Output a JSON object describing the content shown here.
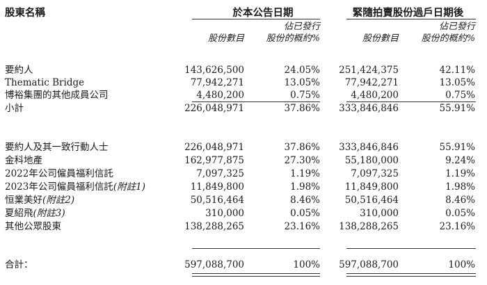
{
  "header": {
    "shareholder_label": "股東名稱",
    "group1_title": "於本公告日期",
    "group2_title": "緊隨拍賣股份過戶日期後",
    "shares_label": "股份數目",
    "pct_label_line1": "佔已發行",
    "pct_label_line2": "股份的概約%"
  },
  "rows_a": [
    {
      "name": "要約人",
      "note": "",
      "s1": "143,626,500",
      "p1": "24.05%",
      "s2": "251,424,375",
      "p2": "42.11%"
    },
    {
      "name": "Thematic Bridge",
      "note": "",
      "s1": "77,942,271",
      "p1": "13.05%",
      "s2": "77,942,271",
      "p2": "13.05%"
    },
    {
      "name": "博裕集團的其他成員公司",
      "note": "",
      "s1": "4,480,200",
      "p1": "0.75%",
      "s2": "4,480,200",
      "p2": "0.75%"
    },
    {
      "name": "小計",
      "note": "",
      "s1": "226,048,971",
      "p1": "37.86%",
      "s2": "333,846,846",
      "p2": "55.91%"
    }
  ],
  "rows_b": [
    {
      "name": "要約人及其一致行動人士",
      "note": "",
      "s1": "226,048,971",
      "p1": "37.86%",
      "s2": "333,846,846",
      "p2": "55.91%"
    },
    {
      "name": "金科地產",
      "note": "",
      "s1": "162,977,875",
      "p1": "27.30%",
      "s2": "55,180,000",
      "p2": "9.24%"
    },
    {
      "name": "2022年公司僱員福利信託",
      "note": "",
      "s1": "7,097,325",
      "p1": "1.19%",
      "s2": "7,097,325",
      "p2": "1.19%"
    },
    {
      "name": "2023年公司僱員福利信託",
      "note": "(附註1)",
      "s1": "11,849,800",
      "p1": "1.98%",
      "s2": "11,849,800",
      "p2": "1.98%"
    },
    {
      "name": "恒業美好",
      "note": "(附註2)",
      "s1": "50,516,464",
      "p1": "8.46%",
      "s2": "50,516,464",
      "p2": "8.46%"
    },
    {
      "name": "夏紹飛",
      "note": "(附註3)",
      "s1": "310,000",
      "p1": "0.05%",
      "s2": "310,000",
      "p2": "0.05%"
    },
    {
      "name": "其他公眾股東",
      "note": "",
      "s1": "138,288,265",
      "p1": "23.16%",
      "s2": "138,288,265",
      "p2": "23.16%"
    }
  ],
  "total": {
    "name": "合計：",
    "s1": "597,088,700",
    "p1": "100%",
    "s2": "597,088,700",
    "p2": "100%"
  }
}
